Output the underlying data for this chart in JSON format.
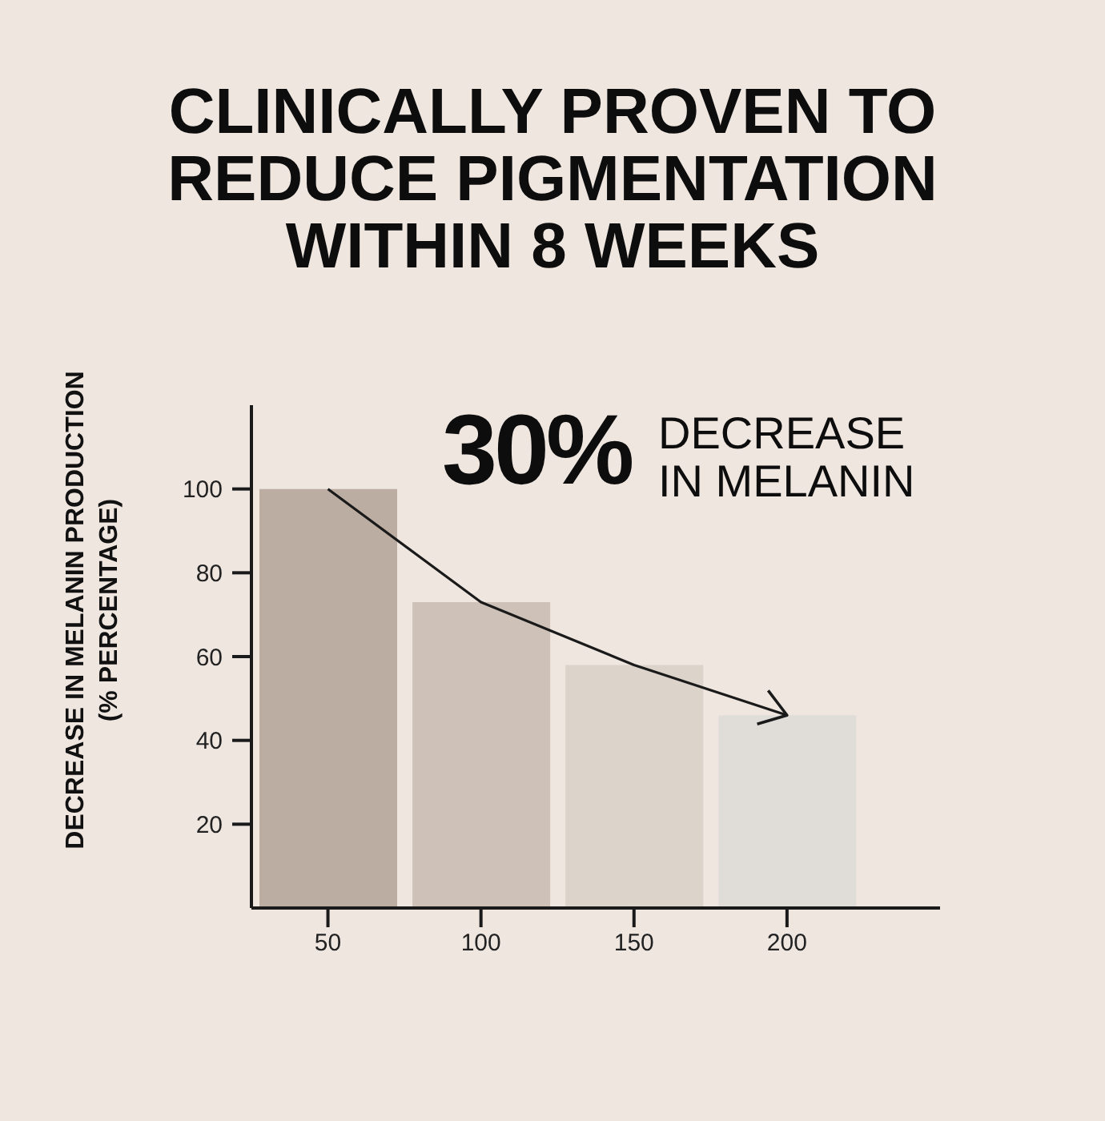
{
  "chart_data": {
    "type": "bar",
    "title": "CLINICALLY PROVEN TO REDUCE PIGMENTATION WITHIN 8 WEEKS",
    "ylabel": "DECREASE IN MELANIN PRODUCTION (% PERCENTAGE)",
    "annotations": [
      "30%",
      "DECREASE IN MELANIN"
    ],
    "x": [
      50,
      100,
      150,
      200
    ],
    "series": [
      {
        "values": [
          100,
          73,
          58,
          46
        ],
        "colors": [
          "#bbada1",
          "#cdc1b8",
          "#dcd3cb",
          "#e0dcd8"
        ]
      },
      {
        "type": "line",
        "x": [
          50,
          100,
          150,
          200
        ],
        "values": [
          100,
          73,
          58,
          46
        ],
        "color": "#1a1a1a"
      }
    ],
    "xlim": [
      25,
      250
    ],
    "xticks": [
      50,
      100,
      150,
      200
    ],
    "ylim": [
      0,
      120
    ],
    "yticks": [
      20,
      40,
      60,
      80,
      100
    ]
  }
}
